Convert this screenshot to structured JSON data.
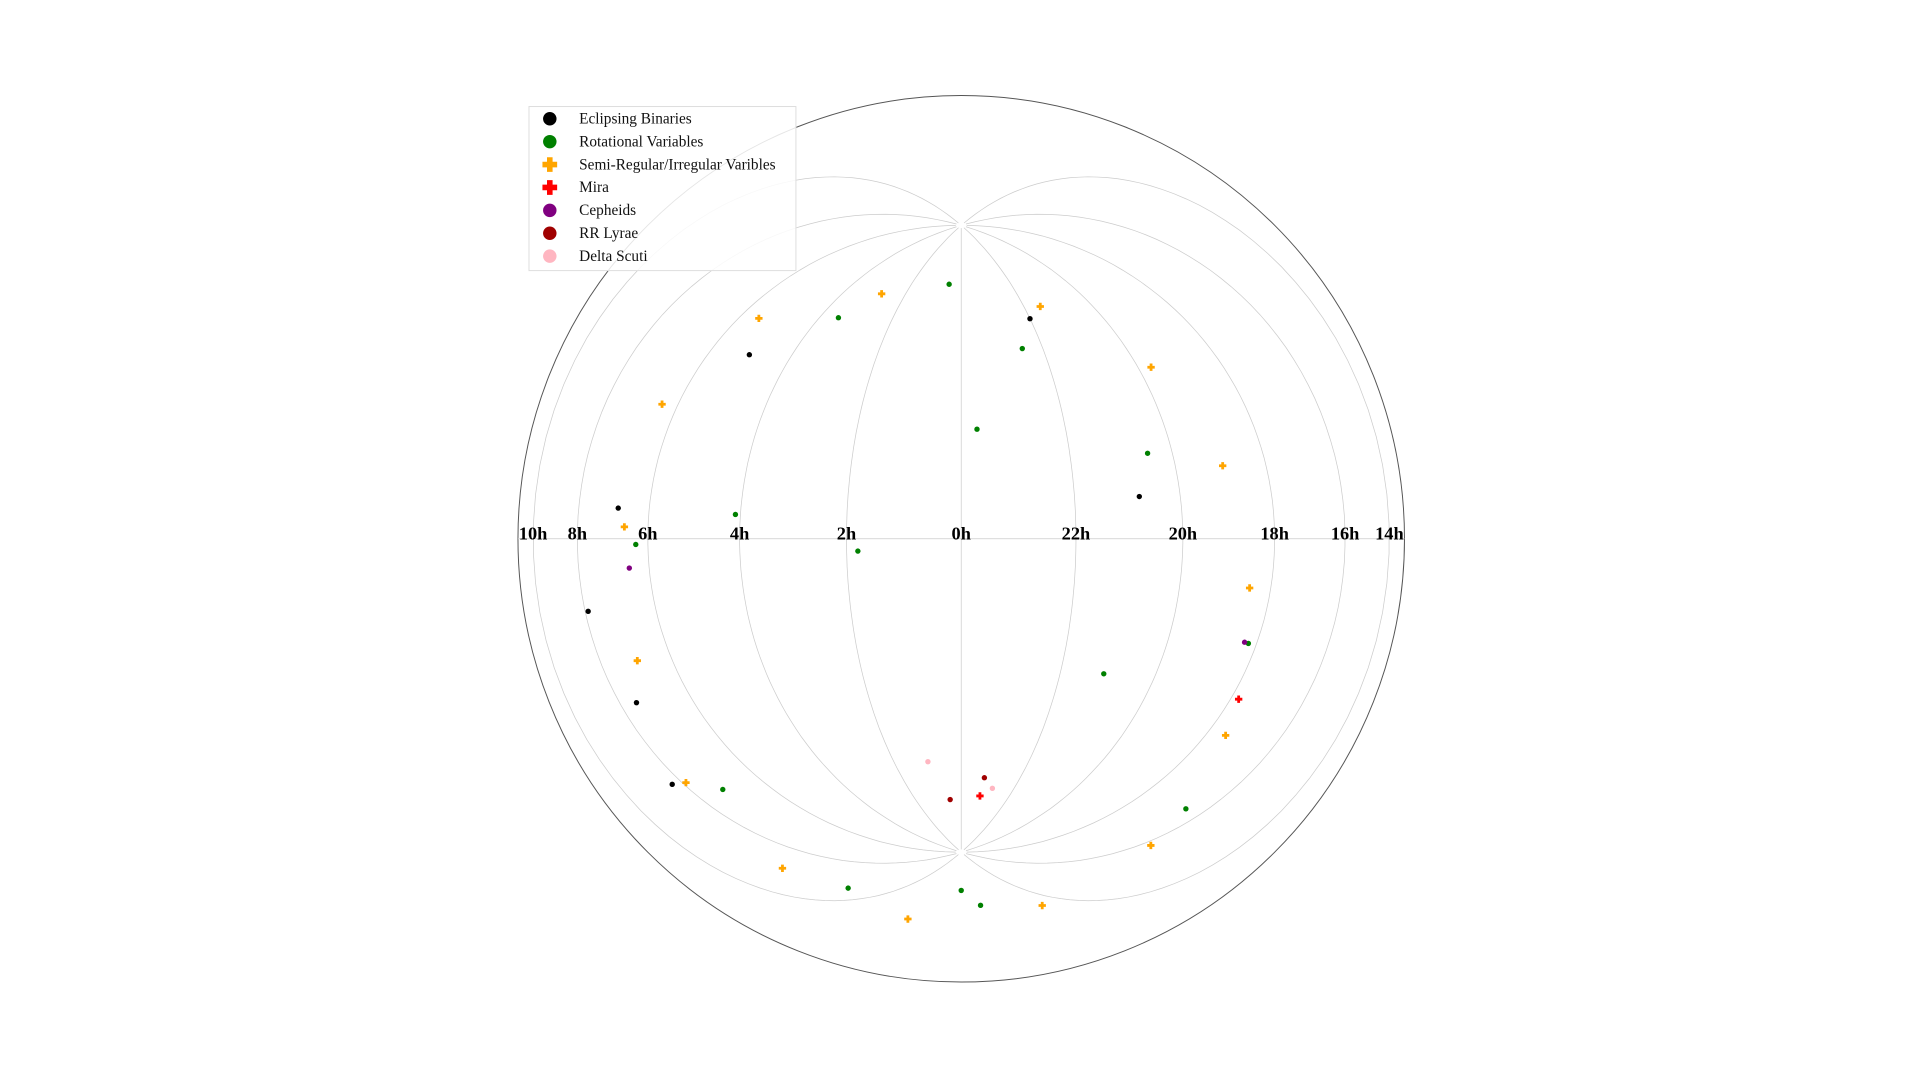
{
  "chart_data": {
    "type": "scatter",
    "projection": "lambert-azimuthal",
    "grid": true,
    "legend": "upper left",
    "xticks": [
      {
        "value": 10,
        "label": "10h"
      },
      {
        "value": 8,
        "label": "8h"
      },
      {
        "value": 6,
        "label": "6h"
      },
      {
        "value": 4,
        "label": "4h"
      },
      {
        "value": 2,
        "label": "2h"
      },
      {
        "value": 0,
        "label": "0h"
      },
      {
        "value": 22,
        "label": "22h"
      },
      {
        "value": 20,
        "label": "20h"
      },
      {
        "value": 18,
        "label": "18h"
      },
      {
        "value": 16,
        "label": "16h"
      },
      {
        "value": 14,
        "label": "14h"
      }
    ],
    "series": [
      {
        "name": "Eclipsing Binaries",
        "color": "#000000",
        "marker": "circle",
        "x": [
          7.9,
          7.5,
          6.8,
          8.3,
          5.0,
          22.0,
          20.8
        ],
        "values": [
          -9.7,
          -25,
          5,
          -35,
          40,
          58,
          10
        ]
      },
      {
        "name": "Rotational Variables",
        "color": "#008000",
        "marker": "circle",
        "x": [
          1.8,
          23.7,
          21.1,
          4.1,
          6.3,
          18.2,
          16.5,
          12.5,
          9.5,
          7.2,
          3.5,
          0.5,
          22.5,
          20.5,
          12.0
        ],
        "values": [
          -3.1,
          28.6,
          -33.1,
          5.4,
          -1,
          -20,
          -48,
          -68,
          -62,
          -45,
          55,
          70,
          50,
          20,
          -75
        ]
      },
      {
        "name": "Semi-Regular/Irregular Varibles",
        "color": "#ffa500",
        "marker": "plus",
        "x": [
          18.5,
          17.5,
          15.8,
          13.6,
          11.1,
          9.0,
          7.9,
          6.9,
          6.6,
          6.4,
          5.5,
          2.8,
          21.5,
          19.7,
          19.0
        ],
        "values": [
          -9.6,
          -36.4,
          -53.6,
          -61.5,
          -59.0,
          -52.5,
          -37.9,
          -20.1,
          2.0,
          24.1,
          47.2,
          64.1,
          60.8,
          39.2,
          15.1
        ]
      },
      {
        "name": "Mira",
        "color": "#ff0000",
        "marker": "plus",
        "x": [
          17.8,
          23.2
        ],
        "values": [
          -30,
          -70.7
        ]
      },
      {
        "name": "Cepheids",
        "color": "#800080",
        "marker": "circle",
        "x": [
          18.3,
          6.5
        ],
        "values": [
          -20,
          -5
        ]
      },
      {
        "name": "RR Lyrae",
        "color": "#a00000",
        "marker": "circle",
        "x": [
          23.2,
          0.5
        ],
        "values": [
          -65,
          -72
        ]
      },
      {
        "name": "Delta Scuti",
        "color": "#ffb6c1",
        "marker": "circle",
        "x": [
          22.8,
          1.0
        ],
        "values": [
          -68,
          -60
        ]
      }
    ]
  }
}
